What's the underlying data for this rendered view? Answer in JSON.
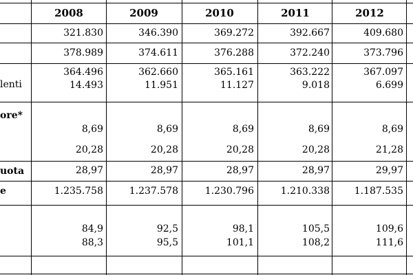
{
  "years": [
    "2008",
    "2009",
    "2010",
    "2011",
    "2012"
  ],
  "row_labels": {
    "r4b": "lenti",
    "r5a": "ore*",
    "r6": "uota",
    "r7": "e"
  },
  "rows": {
    "r1": [
      "321.830",
      "346.390",
      "369.272",
      "392.667",
      "409.680"
    ],
    "r2": [
      "378.989",
      "374.611",
      "376.288",
      "372.240",
      "373.796"
    ],
    "r3": [
      "364.496",
      "362.660",
      "365.161",
      "363.222",
      "367.097"
    ],
    "r4": [
      "14.493",
      "11.951",
      "11.127",
      "9.018",
      "6.699"
    ],
    "r5a": [
      "8,69",
      "8,69",
      "8,69",
      "8,69",
      "8,69"
    ],
    "r5b": [
      "20,28",
      "20,28",
      "20,28",
      "20,28",
      "21,28"
    ],
    "r6": [
      "28,97",
      "28,97",
      "28,97",
      "28,97",
      "29,97"
    ],
    "r7": [
      "1.235.758",
      "1.237.578",
      "1.230.796",
      "1.210.338",
      "1.187.535"
    ],
    "r8a": [
      "84,9",
      "92,5",
      "98,1",
      "105,5",
      "109,6"
    ],
    "r8b": [
      "88,3",
      "95,5",
      "101,1",
      "108,2",
      "111,6"
    ]
  }
}
